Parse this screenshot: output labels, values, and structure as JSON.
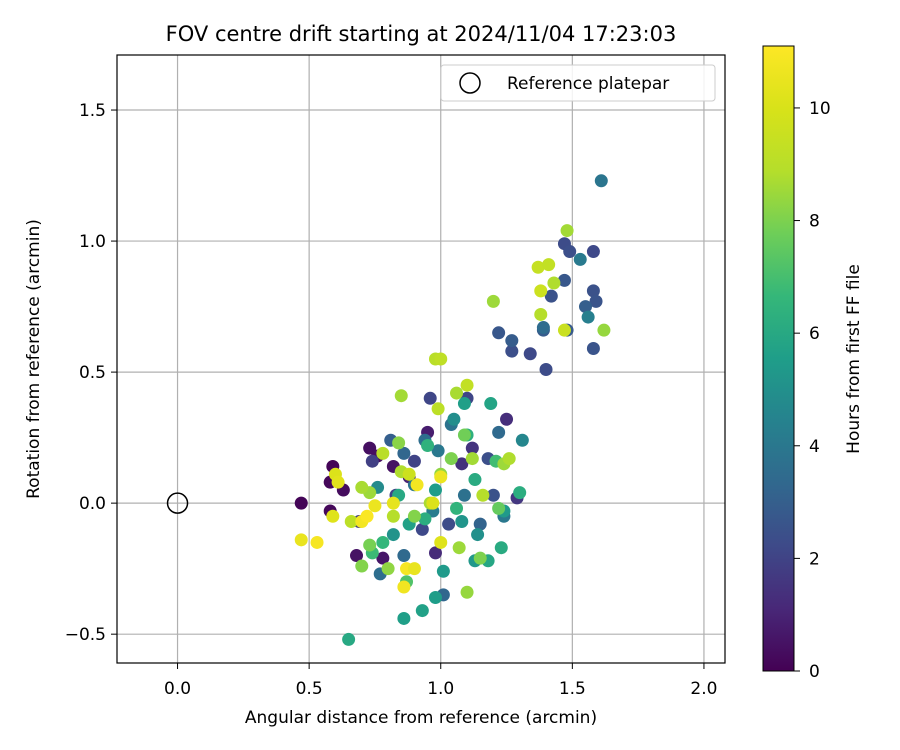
{
  "chart_data": {
    "type": "scatter",
    "title": "FOV centre drift starting at 2024/11/04 17:23:03",
    "xlabel": "Angular distance from reference (arcmin)",
    "ylabel": "Rotation from reference (arcmin)",
    "xlim": [
      -0.23,
      2.08
    ],
    "ylim": [
      -0.61,
      1.71
    ],
    "xticks": [
      0.0,
      0.5,
      1.0,
      1.5,
      2.0
    ],
    "xtick_labels": [
      "0.0",
      "0.5",
      "1.0",
      "1.5",
      "2.0"
    ],
    "yticks": [
      -0.5,
      0.0,
      0.5,
      1.0,
      1.5
    ],
    "ytick_labels": [
      "−0.5",
      "0.0",
      "0.5",
      "1.0",
      "1.5"
    ],
    "grid": true,
    "legend": {
      "label": "Reference platepar",
      "placement": "top-right"
    },
    "reference_point": {
      "x": 0.0,
      "y": 0.0
    },
    "colorbar": {
      "label": "Hours from first FF file",
      "range": [
        0,
        11.1
      ],
      "ticks": [
        0,
        2,
        4,
        6,
        8,
        10
      ],
      "colormap": "viridis"
    },
    "points": [
      {
        "x": 0.47,
        "y": 0.0,
        "c": 0.1
      },
      {
        "x": 0.58,
        "y": 0.08,
        "c": 0.2
      },
      {
        "x": 0.59,
        "y": 0.14,
        "c": 0.1
      },
      {
        "x": 0.63,
        "y": 0.05,
        "c": 0.3
      },
      {
        "x": 0.58,
        "y": -0.03,
        "c": 0.2
      },
      {
        "x": 0.68,
        "y": -0.2,
        "c": 0.5
      },
      {
        "x": 0.73,
        "y": 0.21,
        "c": 0.4
      },
      {
        "x": 0.78,
        "y": -0.21,
        "c": 0.6
      },
      {
        "x": 0.82,
        "y": 0.14,
        "c": 0.5
      },
      {
        "x": 0.76,
        "y": 0.18,
        "c": 0.4
      },
      {
        "x": 0.95,
        "y": 0.27,
        "c": 0.8
      },
      {
        "x": 0.88,
        "y": 0.1,
        "c": 1.0
      },
      {
        "x": 0.98,
        "y": -0.19,
        "c": 1.2
      },
      {
        "x": 1.08,
        "y": 0.15,
        "c": 1.4
      },
      {
        "x": 1.12,
        "y": 0.21,
        "c": 1.5
      },
      {
        "x": 1.25,
        "y": 0.32,
        "c": 1.3
      },
      {
        "x": 1.29,
        "y": 0.02,
        "c": 1.6
      },
      {
        "x": 0.69,
        "y": -0.07,
        "c": 1.8
      },
      {
        "x": 0.74,
        "y": 0.16,
        "c": 1.9
      },
      {
        "x": 0.83,
        "y": 0.03,
        "c": 2.0
      },
      {
        "x": 0.9,
        "y": 0.16,
        "c": 2.0
      },
      {
        "x": 0.93,
        "y": -0.1,
        "c": 2.2
      },
      {
        "x": 0.96,
        "y": 0.4,
        "c": 2.1
      },
      {
        "x": 1.03,
        "y": -0.08,
        "c": 2.3
      },
      {
        "x": 1.1,
        "y": 0.4,
        "c": 2.1
      },
      {
        "x": 1.18,
        "y": 0.17,
        "c": 2.4
      },
      {
        "x": 1.2,
        "y": 0.03,
        "c": 2.5
      },
      {
        "x": 1.34,
        "y": 0.57,
        "c": 2.2
      },
      {
        "x": 1.4,
        "y": 0.51,
        "c": 2.3
      },
      {
        "x": 1.27,
        "y": 0.58,
        "c": 2.4
      },
      {
        "x": 1.47,
        "y": 0.99,
        "c": 2.3
      },
      {
        "x": 1.49,
        "y": 0.96,
        "c": 2.4
      },
      {
        "x": 1.58,
        "y": 0.96,
        "c": 2.2
      },
      {
        "x": 1.58,
        "y": 0.81,
        "c": 2.5
      },
      {
        "x": 1.59,
        "y": 0.77,
        "c": 2.6
      },
      {
        "x": 1.42,
        "y": 0.79,
        "c": 2.5
      },
      {
        "x": 1.47,
        "y": 0.85,
        "c": 2.7
      },
      {
        "x": 1.39,
        "y": 0.66,
        "c": 2.9
      },
      {
        "x": 1.48,
        "y": 0.66,
        "c": 2.8
      },
      {
        "x": 1.58,
        "y": 0.59,
        "c": 2.6
      },
      {
        "x": 1.22,
        "y": 0.65,
        "c": 2.7
      },
      {
        "x": 1.27,
        "y": 0.62,
        "c": 2.9
      },
      {
        "x": 1.55,
        "y": 0.75,
        "c": 3.0
      },
      {
        "x": 1.61,
        "y": 1.23,
        "c": 3.9
      },
      {
        "x": 1.53,
        "y": 0.93,
        "c": 4.1
      },
      {
        "x": 1.56,
        "y": 0.71,
        "c": 4.3
      },
      {
        "x": 1.39,
        "y": 0.67,
        "c": 3.5
      },
      {
        "x": 0.81,
        "y": 0.24,
        "c": 3.0
      },
      {
        "x": 0.86,
        "y": 0.19,
        "c": 3.3
      },
      {
        "x": 0.94,
        "y": 0.24,
        "c": 3.6
      },
      {
        "x": 0.99,
        "y": 0.2,
        "c": 4.0
      },
      {
        "x": 1.04,
        "y": 0.3,
        "c": 3.8
      },
      {
        "x": 1.22,
        "y": 0.27,
        "c": 3.4
      },
      {
        "x": 1.31,
        "y": 0.24,
        "c": 4.6
      },
      {
        "x": 0.77,
        "y": -0.27,
        "c": 3.6
      },
      {
        "x": 0.86,
        "y": -0.2,
        "c": 3.4
      },
      {
        "x": 1.01,
        "y": -0.35,
        "c": 3.3
      },
      {
        "x": 1.09,
        "y": 0.03,
        "c": 3.7
      },
      {
        "x": 1.15,
        "y": -0.08,
        "c": 3.2
      },
      {
        "x": 1.24,
        "y": -0.05,
        "c": 4.0
      },
      {
        "x": 0.9,
        "y": 0.07,
        "c": 3.9
      },
      {
        "x": 0.97,
        "y": -0.03,
        "c": 4.2
      },
      {
        "x": 0.86,
        "y": -0.44,
        "c": 5.6
      },
      {
        "x": 0.93,
        "y": -0.41,
        "c": 5.7
      },
      {
        "x": 0.98,
        "y": -0.36,
        "c": 5.5
      },
      {
        "x": 0.65,
        "y": -0.52,
        "c": 6.0
      },
      {
        "x": 1.01,
        "y": -0.26,
        "c": 5.4
      },
      {
        "x": 1.13,
        "y": -0.22,
        "c": 5.3
      },
      {
        "x": 1.18,
        "y": -0.22,
        "c": 5.9
      },
      {
        "x": 1.23,
        "y": -0.17,
        "c": 6.1
      },
      {
        "x": 1.14,
        "y": -0.12,
        "c": 5.0
      },
      {
        "x": 1.08,
        "y": -0.07,
        "c": 5.2
      },
      {
        "x": 1.19,
        "y": 0.38,
        "c": 5.8
      },
      {
        "x": 1.09,
        "y": 0.38,
        "c": 5.6
      },
      {
        "x": 1.05,
        "y": 0.32,
        "c": 4.9
      },
      {
        "x": 1.1,
        "y": 0.26,
        "c": 6.3
      },
      {
        "x": 0.82,
        "y": -0.12,
        "c": 5.1
      },
      {
        "x": 0.78,
        "y": -0.15,
        "c": 6.6
      },
      {
        "x": 0.74,
        "y": -0.19,
        "c": 6.8
      },
      {
        "x": 0.76,
        "y": 0.06,
        "c": 4.8
      },
      {
        "x": 0.88,
        "y": -0.08,
        "c": 5.7
      },
      {
        "x": 0.94,
        "y": -0.06,
        "c": 6.2
      },
      {
        "x": 0.98,
        "y": 0.05,
        "c": 5.5
      },
      {
        "x": 1.06,
        "y": -0.02,
        "c": 6.5
      },
      {
        "x": 1.13,
        "y": 0.09,
        "c": 6.1
      },
      {
        "x": 1.21,
        "y": 0.16,
        "c": 6.9
      },
      {
        "x": 1.24,
        "y": -0.03,
        "c": 5.4
      },
      {
        "x": 1.3,
        "y": 0.04,
        "c": 6.2
      },
      {
        "x": 0.95,
        "y": 0.22,
        "c": 6.4
      },
      {
        "x": 0.84,
        "y": 0.03,
        "c": 6.0
      },
      {
        "x": 0.7,
        "y": -0.24,
        "c": 8.1
      },
      {
        "x": 0.8,
        "y": -0.25,
        "c": 8.3
      },
      {
        "x": 0.87,
        "y": -0.3,
        "c": 7.2
      },
      {
        "x": 1.1,
        "y": -0.34,
        "c": 8.4
      },
      {
        "x": 0.73,
        "y": 0.04,
        "c": 8.5
      },
      {
        "x": 0.85,
        "y": 0.41,
        "c": 8.6
      },
      {
        "x": 0.98,
        "y": 0.55,
        "c": 9.0
      },
      {
        "x": 1.0,
        "y": 0.55,
        "c": 9.2
      },
      {
        "x": 0.99,
        "y": 0.36,
        "c": 9.1
      },
      {
        "x": 1.06,
        "y": 0.42,
        "c": 8.7
      },
      {
        "x": 1.1,
        "y": 0.45,
        "c": 9.3
      },
      {
        "x": 1.2,
        "y": 0.77,
        "c": 8.5
      },
      {
        "x": 1.37,
        "y": 0.9,
        "c": 9.4
      },
      {
        "x": 1.41,
        "y": 0.91,
        "c": 9.3
      },
      {
        "x": 1.43,
        "y": 0.84,
        "c": 8.8
      },
      {
        "x": 1.38,
        "y": 0.81,
        "c": 9.6
      },
      {
        "x": 1.38,
        "y": 0.72,
        "c": 8.9
      },
      {
        "x": 1.47,
        "y": 0.66,
        "c": 9.5
      },
      {
        "x": 1.48,
        "y": 1.04,
        "c": 8.6
      },
      {
        "x": 1.62,
        "y": 0.66,
        "c": 8.4
      },
      {
        "x": 0.84,
        "y": 0.23,
        "c": 8.2
      },
      {
        "x": 0.78,
        "y": 0.19,
        "c": 9.0
      },
      {
        "x": 0.85,
        "y": 0.12,
        "c": 8.8
      },
      {
        "x": 0.88,
        "y": 0.11,
        "c": 9.6
      },
      {
        "x": 0.9,
        "y": -0.05,
        "c": 8.1
      },
      {
        "x": 0.96,
        "y": 0.0,
        "c": 8.7
      },
      {
        "x": 1.0,
        "y": 0.11,
        "c": 8.3
      },
      {
        "x": 1.04,
        "y": 0.17,
        "c": 8.0
      },
      {
        "x": 1.09,
        "y": 0.26,
        "c": 7.8
      },
      {
        "x": 1.12,
        "y": 0.17,
        "c": 8.6
      },
      {
        "x": 1.16,
        "y": 0.03,
        "c": 8.9
      },
      {
        "x": 1.22,
        "y": -0.02,
        "c": 7.6
      },
      {
        "x": 1.24,
        "y": 0.15,
        "c": 8.5
      },
      {
        "x": 1.26,
        "y": 0.17,
        "c": 8.8
      },
      {
        "x": 1.07,
        "y": -0.17,
        "c": 8.5
      },
      {
        "x": 1.15,
        "y": -0.21,
        "c": 8.0
      },
      {
        "x": 0.82,
        "y": -0.05,
        "c": 8.9
      },
      {
        "x": 0.66,
        "y": -0.07,
        "c": 9.1
      },
      {
        "x": 0.7,
        "y": 0.06,
        "c": 8.7
      },
      {
        "x": 0.73,
        "y": -0.16,
        "c": 7.9
      },
      {
        "x": 0.6,
        "y": 0.11,
        "c": 10.1
      },
      {
        "x": 0.61,
        "y": 0.08,
        "c": 10.3
      },
      {
        "x": 0.47,
        "y": -0.14,
        "c": 10.5
      },
      {
        "x": 0.53,
        "y": -0.15,
        "c": 10.9
      },
      {
        "x": 0.59,
        "y": -0.05,
        "c": 10.2
      },
      {
        "x": 0.7,
        "y": -0.07,
        "c": 10.8
      },
      {
        "x": 0.72,
        "y": -0.05,
        "c": 11.0
      },
      {
        "x": 0.75,
        "y": -0.01,
        "c": 10.6
      },
      {
        "x": 0.82,
        "y": 0.0,
        "c": 10.4
      },
      {
        "x": 0.86,
        "y": -0.32,
        "c": 10.7
      },
      {
        "x": 0.87,
        "y": -0.25,
        "c": 10.9
      },
      {
        "x": 0.9,
        "y": -0.25,
        "c": 10.5
      },
      {
        "x": 0.91,
        "y": 0.07,
        "c": 10.8
      },
      {
        "x": 0.97,
        "y": 0.0,
        "c": 10.1
      },
      {
        "x": 1.0,
        "y": 0.1,
        "c": 10.6
      },
      {
        "x": 1.0,
        "y": -0.15,
        "c": 10.2
      }
    ]
  }
}
